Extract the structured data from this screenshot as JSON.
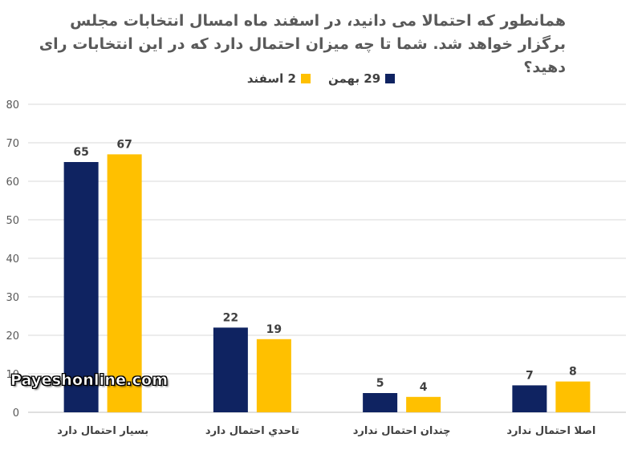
{
  "chart_data": {
    "type": "bar",
    "title": "همانطور که احتمالا می دانید، در اسفند ماه امسال انتخابات مجلس برگزار خواهد شد. شما تا چه میزان احتمال دارد که در این انتخابات رای دهید؟",
    "categories": [
      "بسیار احتمال دارد",
      "تاحدي احتمال دارد",
      "چندان احتمال ندارد",
      "اصلا احتمال ندارد"
    ],
    "series": [
      {
        "name": "29 بهمن",
        "values": [
          65,
          22,
          5,
          7
        ],
        "color": "#0f2361"
      },
      {
        "name": "2 اسفند",
        "values": [
          67,
          19,
          4,
          8
        ],
        "color": "#ffc000"
      }
    ],
    "ylim": [
      0,
      80
    ],
    "yticks": [
      "0",
      "10",
      "20",
      "30",
      "40",
      "50",
      "60",
      "70",
      "80"
    ],
    "grid": true,
    "legend_position": "top-center",
    "xlabel": "",
    "ylabel": ""
  },
  "watermark": "Payeshonline.com"
}
